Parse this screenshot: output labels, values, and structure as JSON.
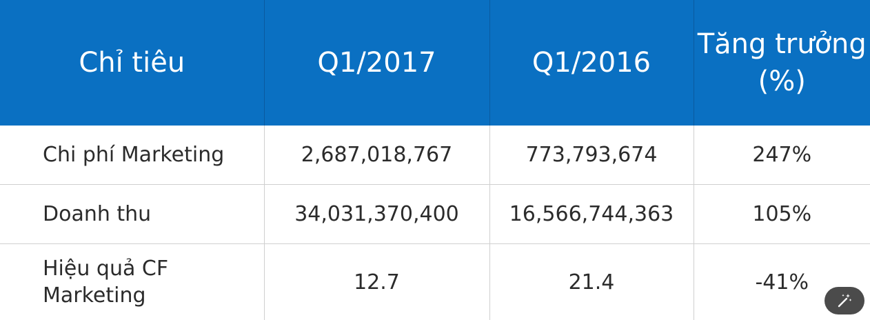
{
  "table": {
    "headers": [
      {
        "line1": "Chỉ tiêu",
        "line2": ""
      },
      {
        "line1": "Q1/2017",
        "line2": ""
      },
      {
        "line1": "Q1/2016",
        "line2": ""
      },
      {
        "line1": "Tăng trưởng",
        "line2": "(%)"
      }
    ],
    "rows": [
      {
        "label_line1": "Chi phí Marketing",
        "label_line2": "",
        "q1_2017": "2,687,018,767",
        "q1_2016": "773,793,674",
        "growth": "247%"
      },
      {
        "label_line1": "Doanh thu",
        "label_line2": "",
        "q1_2017": "34,031,370,400",
        "q1_2016": "16,566,744,363",
        "growth": "105%"
      },
      {
        "label_line1": "Hiệu quả CF",
        "label_line2": "Marketing",
        "q1_2017": "12.7",
        "q1_2016": "21.4",
        "growth": "-41%"
      }
    ]
  },
  "colors": {
    "header_bg": "#0a70c2",
    "header_text": "#ffffff",
    "body_text": "#2b2b2b",
    "grid_line": "#cfcfcf"
  },
  "floating_button": {
    "icon": "magic-wand-icon"
  }
}
